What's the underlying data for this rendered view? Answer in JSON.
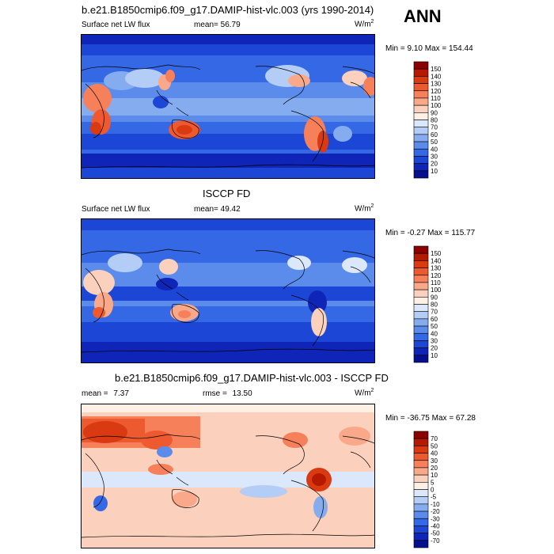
{
  "season": "ANN",
  "panels": [
    {
      "id": "model",
      "title": "b.e21.B1850cmip6.f09_g17.DAMIP-hist-vlc.003 (yrs 1990-2014)",
      "left_label": "Surface net LW flux",
      "stat1_label": "mean=",
      "stat1_value": "56.79",
      "stat2_label": "",
      "stat2_value": "",
      "units_base": "W/m",
      "units_exp": "2",
      "minmax": "Min =   9.10 Max = 154.44",
      "colorbar": {
        "levels": [
          "150",
          "140",
          "130",
          "120",
          "110",
          "100",
          "90",
          "80",
          "70",
          "60",
          "50",
          "40",
          "30",
          "20",
          "10"
        ],
        "colors": [
          "#8b0000",
          "#b51a00",
          "#d93a12",
          "#ee5a2f",
          "#f6805a",
          "#f9a98a",
          "#fbd0bc",
          "#fff0e6",
          "#dbe8fb",
          "#b3cdf6",
          "#86acf0",
          "#5c8ceb",
          "#3468e5",
          "#1c46d6",
          "#0f25b8",
          "#07108c"
        ]
      },
      "chart_data": {
        "type": "heatmap",
        "title": "b.e21.B1850cmip6.f09_g17.DAMIP-hist-vlc.003 (yrs 1990-2014)",
        "variable": "Surface net LW flux",
        "units": "W/m2",
        "mean": 56.79,
        "min": 9.1,
        "max": 154.44,
        "contour_levels": [
          10,
          20,
          30,
          40,
          50,
          60,
          70,
          80,
          90,
          100,
          110,
          120,
          130,
          140,
          150
        ],
        "projection": "global lat-lon, centered 180"
      }
    },
    {
      "id": "obs",
      "title": "ISCCP FD",
      "left_label": "Surface net LW flux",
      "stat1_label": "mean=",
      "stat1_value": "49.42",
      "stat2_label": "",
      "stat2_value": "",
      "units_base": "W/m",
      "units_exp": "2",
      "minmax": "Min =  -0.27 Max = 115.77",
      "colorbar": {
        "levels": [
          "150",
          "140",
          "130",
          "120",
          "110",
          "100",
          "90",
          "80",
          "70",
          "60",
          "50",
          "40",
          "30",
          "20",
          "10"
        ],
        "colors": [
          "#8b0000",
          "#b51a00",
          "#d93a12",
          "#ee5a2f",
          "#f6805a",
          "#f9a98a",
          "#fbd0bc",
          "#fff0e6",
          "#dbe8fb",
          "#b3cdf6",
          "#86acf0",
          "#5c8ceb",
          "#3468e5",
          "#1c46d6",
          "#0f25b8",
          "#07108c"
        ]
      },
      "chart_data": {
        "type": "heatmap",
        "title": "ISCCP FD",
        "variable": "Surface net LW flux",
        "units": "W/m2",
        "mean": 49.42,
        "min": -0.27,
        "max": 115.77,
        "contour_levels": [
          10,
          20,
          30,
          40,
          50,
          60,
          70,
          80,
          90,
          100,
          110,
          120,
          130,
          140,
          150
        ],
        "projection": "global lat-lon, centered 180"
      }
    },
    {
      "id": "diff",
      "title": "b.e21.B1850cmip6.f09_g17.DAMIP-hist-vlc.003 - ISCCP FD",
      "left_label": "mean =",
      "stat1_label": "",
      "stat1_value": "7.37",
      "stat2_label": "rmse =",
      "stat2_value": "13.50",
      "units_base": "W/m",
      "units_exp": "2",
      "minmax": "Min = -36.75 Max =  67.28",
      "colorbar": {
        "levels": [
          "70",
          "50",
          "40",
          "30",
          "20",
          "10",
          "5",
          "0",
          "-5",
          "-10",
          "-20",
          "-30",
          "-40",
          "-50",
          "-70"
        ],
        "colors": [
          "#8b0000",
          "#b51a00",
          "#d93a12",
          "#ee5a2f",
          "#f6805a",
          "#f9a98a",
          "#fbd0bc",
          "#fff0e6",
          "#dbe8fb",
          "#b3cdf6",
          "#86acf0",
          "#5c8ceb",
          "#3468e5",
          "#1c46d6",
          "#0f25b8",
          "#07108c"
        ]
      },
      "chart_data": {
        "type": "heatmap",
        "title": "b.e21.B1850cmip6.f09_g17.DAMIP-hist-vlc.003 - ISCCP FD",
        "variable": "Surface net LW flux difference",
        "units": "W/m2",
        "mean": 7.37,
        "rmse": 13.5,
        "min": -36.75,
        "max": 67.28,
        "contour_levels": [
          -70,
          -50,
          -40,
          -30,
          -20,
          -10,
          -5,
          0,
          5,
          10,
          20,
          30,
          40,
          50,
          70
        ],
        "projection": "global lat-lon, centered 180"
      }
    }
  ]
}
